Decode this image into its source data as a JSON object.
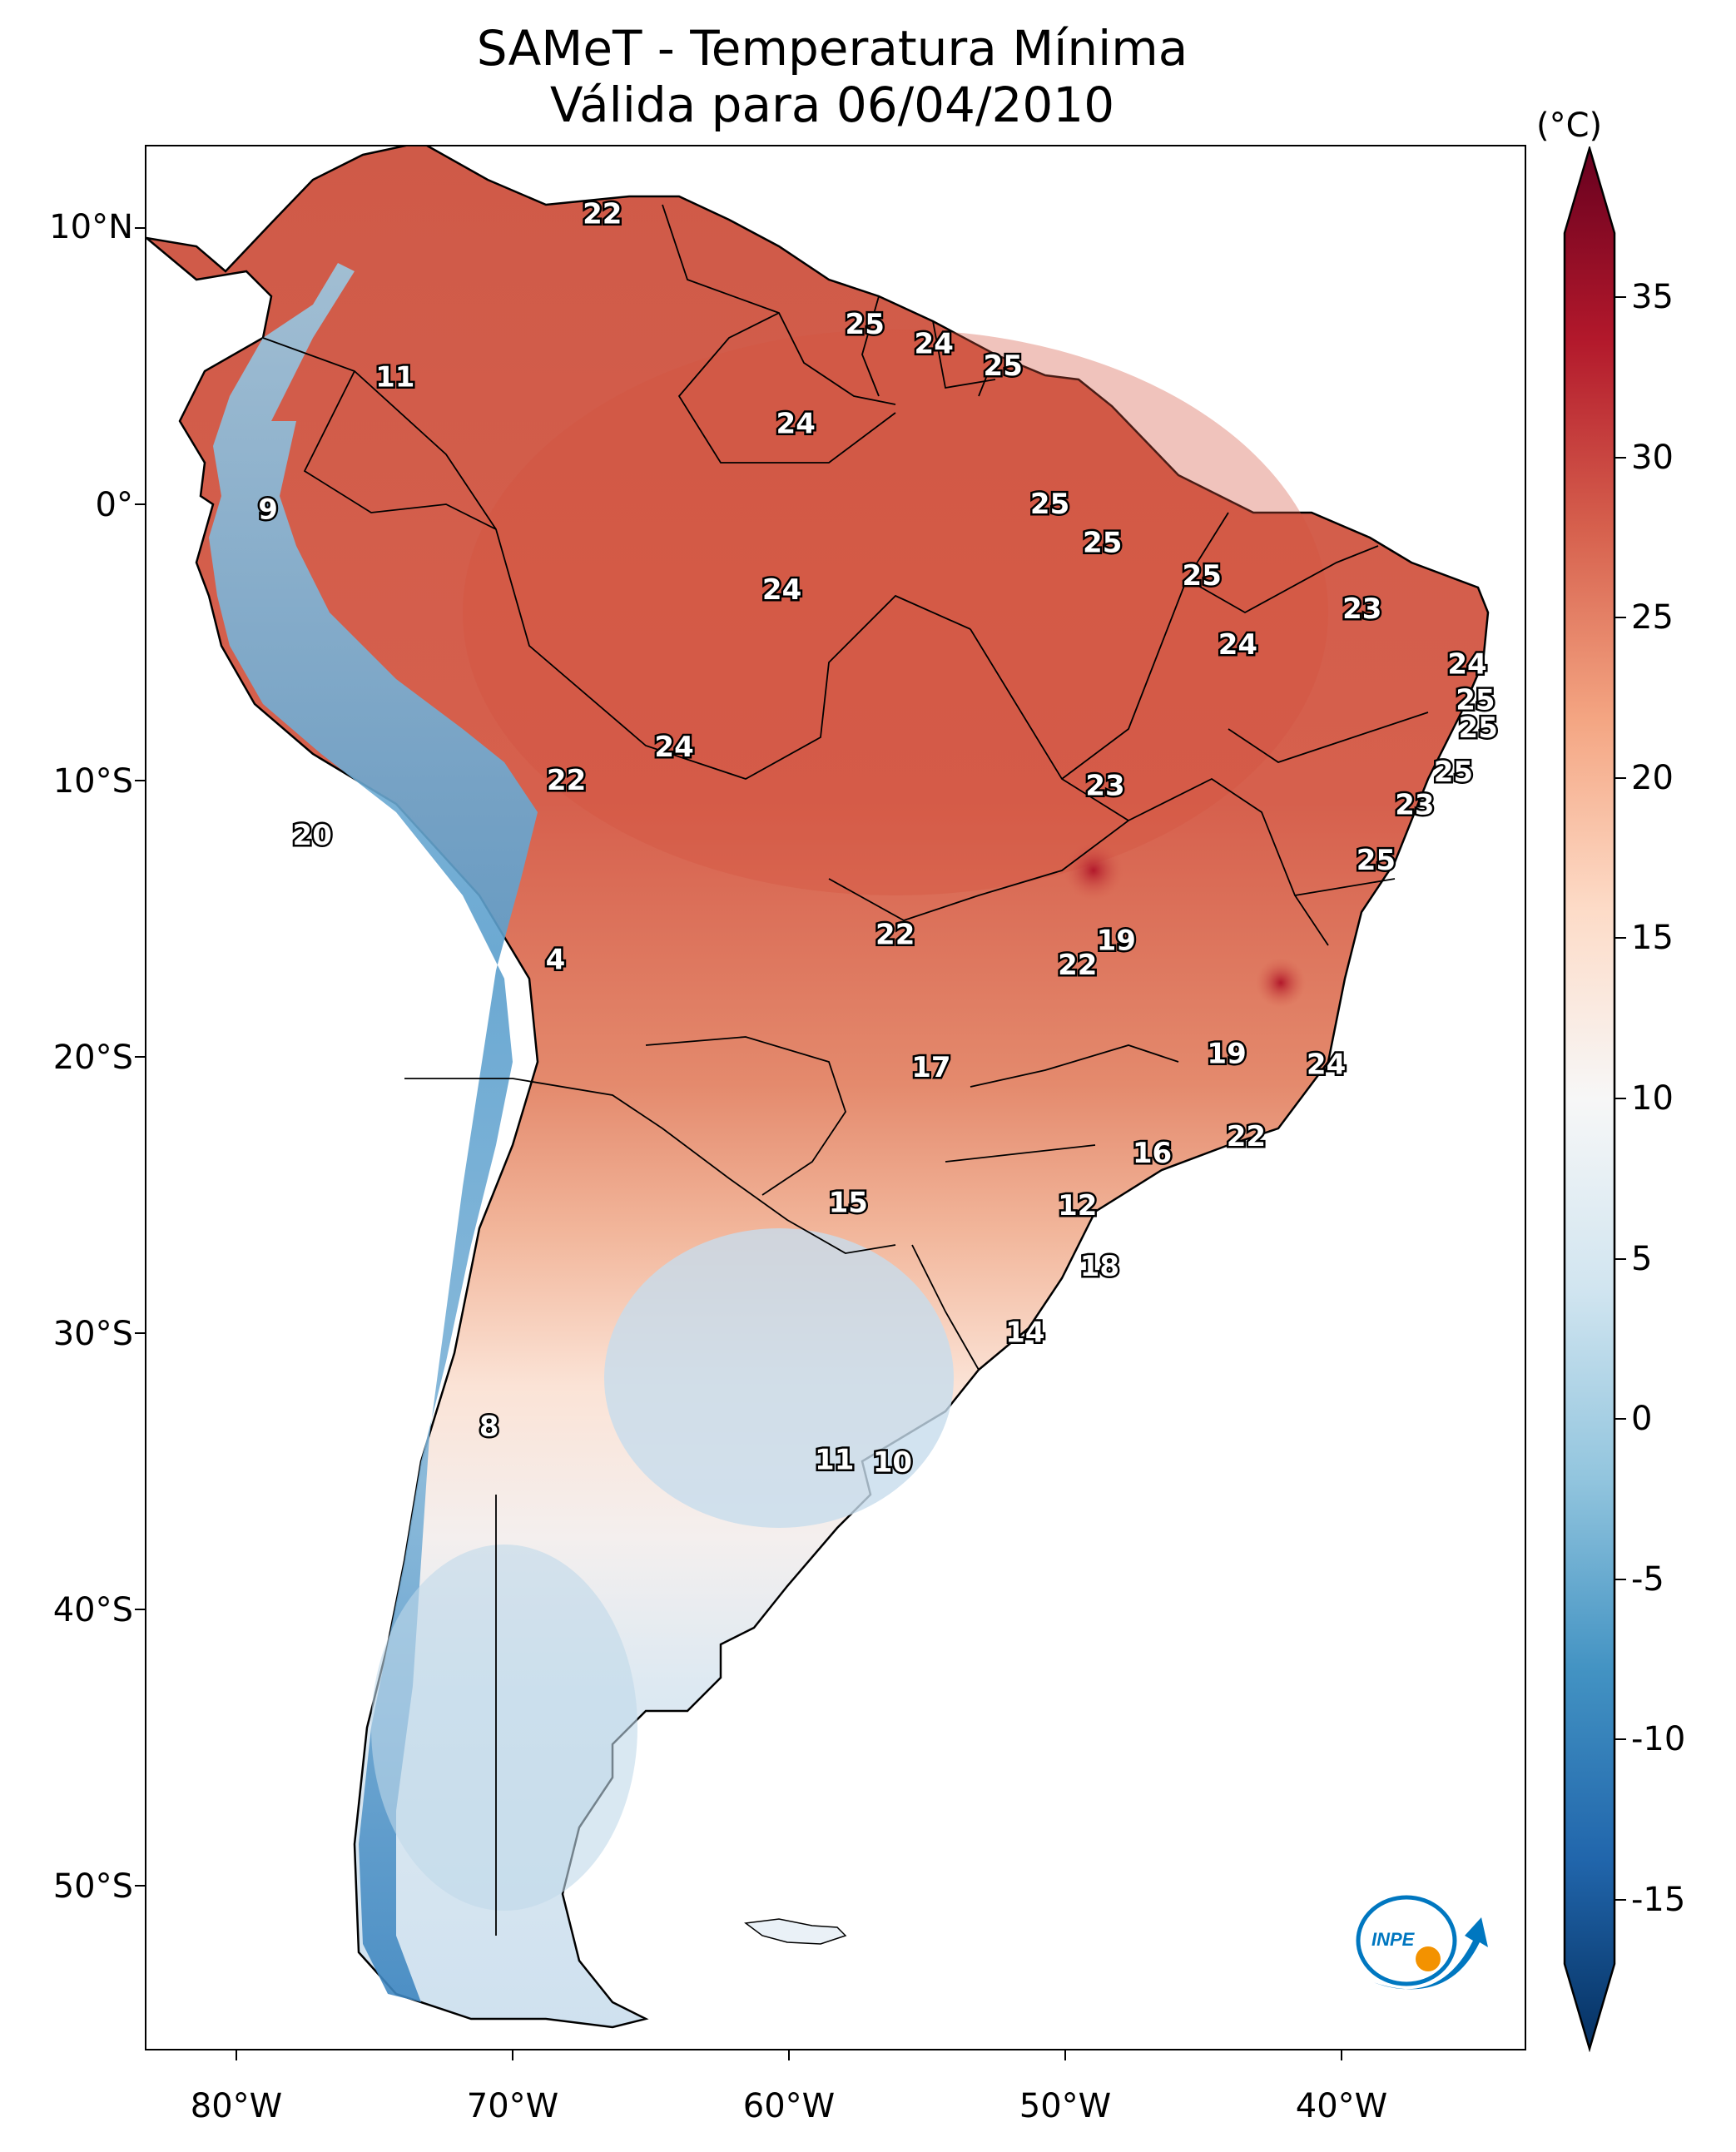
{
  "title": {
    "line1": "SAMeT - Temperatura Mínima",
    "line2": "Válida para 06/04/2010"
  },
  "axes": {
    "lat_labels": [
      "10°N",
      "0°",
      "10°S",
      "20°S",
      "30°S",
      "40°S",
      "50°S"
    ],
    "lat_values": [
      10,
      0,
      -10,
      -20,
      -30,
      -40,
      -50
    ],
    "lon_labels": [
      "80°W",
      "70°W",
      "60°W",
      "50°W",
      "40°W"
    ],
    "lon_values": [
      -80,
      -70,
      -60,
      -50,
      -40
    ],
    "lon_range": [
      -83,
      -33
    ],
    "lat_range": [
      -56,
      13
    ]
  },
  "colorbar": {
    "unit": "(°C)",
    "ticks": [
      "35",
      "30",
      "25",
      "20",
      "15",
      "10",
      "5",
      "0",
      "-5",
      "-10",
      "-15"
    ],
    "tick_values": [
      35,
      30,
      25,
      20,
      15,
      10,
      5,
      0,
      -5,
      -10,
      -15
    ],
    "range": [
      -17,
      37
    ],
    "colors": [
      "#053061",
      "#2166ac",
      "#4393c3",
      "#92c5de",
      "#d1e5f0",
      "#f7f7f7",
      "#fddbc7",
      "#f4a582",
      "#d6604d",
      "#b2182b",
      "#67001f"
    ]
  },
  "map_data": {
    "type": "filled-contour-map",
    "variable": "Temperatura Mínima",
    "annotations": [
      {
        "text": "22",
        "lon": -66.5,
        "lat": 10.5
      },
      {
        "text": "25",
        "lon": -57.0,
        "lat": 6.5
      },
      {
        "text": "24",
        "lon": -54.5,
        "lat": 5.8
      },
      {
        "text": "25",
        "lon": -52.0,
        "lat": 5.0
      },
      {
        "text": "11",
        "lon": -74.0,
        "lat": 4.6
      },
      {
        "text": "24",
        "lon": -59.5,
        "lat": 2.9
      },
      {
        "text": "9",
        "lon": -78.6,
        "lat": -0.2
      },
      {
        "text": "25",
        "lon": -50.3,
        "lat": 0.0
      },
      {
        "text": "25",
        "lon": -48.4,
        "lat": -1.4
      },
      {
        "text": "25",
        "lon": -44.8,
        "lat": -2.6
      },
      {
        "text": "24",
        "lon": -60.0,
        "lat": -3.1
      },
      {
        "text": "23",
        "lon": -39.0,
        "lat": -3.8
      },
      {
        "text": "24",
        "lon": -43.5,
        "lat": -5.1
      },
      {
        "text": "24",
        "lon": -35.2,
        "lat": -5.8
      },
      {
        "text": "25",
        "lon": -34.9,
        "lat": -7.1
      },
      {
        "text": "25",
        "lon": -34.8,
        "lat": -8.1
      },
      {
        "text": "24",
        "lon": -63.9,
        "lat": -8.8
      },
      {
        "text": "22",
        "lon": -67.8,
        "lat": -10.0
      },
      {
        "text": "25",
        "lon": -35.7,
        "lat": -9.7
      },
      {
        "text": "23",
        "lon": -48.3,
        "lat": -10.2
      },
      {
        "text": "23",
        "lon": -37.1,
        "lat": -10.9
      },
      {
        "text": "20",
        "lon": -77.0,
        "lat": -12.0
      },
      {
        "text": "25",
        "lon": -38.5,
        "lat": -12.9
      },
      {
        "text": "22",
        "lon": -55.9,
        "lat": -15.6
      },
      {
        "text": "19",
        "lon": -47.9,
        "lat": -15.8
      },
      {
        "text": "22",
        "lon": -49.3,
        "lat": -16.7
      },
      {
        "text": "4",
        "lon": -68.2,
        "lat": -16.5
      },
      {
        "text": "19",
        "lon": -43.9,
        "lat": -19.9
      },
      {
        "text": "17",
        "lon": -54.6,
        "lat": -20.4
      },
      {
        "text": "24",
        "lon": -40.3,
        "lat": -20.3
      },
      {
        "text": "22",
        "lon": -43.2,
        "lat": -22.9
      },
      {
        "text": "16",
        "lon": -46.6,
        "lat": -23.5
      },
      {
        "text": "15",
        "lon": -57.6,
        "lat": -25.3
      },
      {
        "text": "12",
        "lon": -49.3,
        "lat": -25.4
      },
      {
        "text": "18",
        "lon": -48.5,
        "lat": -27.6
      },
      {
        "text": "14",
        "lon": -51.2,
        "lat": -30.0
      },
      {
        "text": "8",
        "lon": -70.6,
        "lat": -33.4
      },
      {
        "text": "11",
        "lon": -58.1,
        "lat": -34.6
      },
      {
        "text": "10",
        "lon": -56.0,
        "lat": -34.7
      }
    ]
  },
  "logo": {
    "text": "INPE",
    "colors": [
      "#0077c0",
      "#f39200"
    ]
  }
}
